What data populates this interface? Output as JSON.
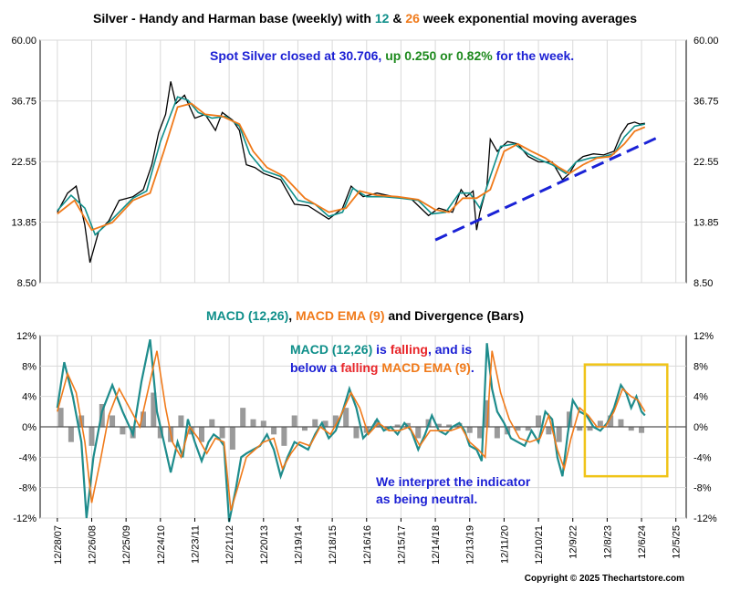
{
  "colors": {
    "price": "#000000",
    "ema12": "#0f8f8a",
    "ema26": "#f07a1a",
    "macd": "#1e8c8c",
    "signal": "#f07a1a",
    "bars": "#9a9a9a",
    "trendline": "#1a22d6",
    "highlight": "#f0c419",
    "grid": "#d9d9d9"
  },
  "header": {
    "title_pre": "Silver - Handy and Harman base (weekly) with ",
    "title_12": "12",
    "title_amp": " & ",
    "title_26": "26",
    "title_post": " week exponential moving averages"
  },
  "spot_note": {
    "pre": "Spot Silver closed at 30.706, ",
    "up": "up 0.250 or 0.82%",
    "post": " for the week."
  },
  "macd_header": {
    "macd": "MACD (12,26)",
    "sep": ", ",
    "ema": "MACD EMA (9)",
    "post": " and Divergence (Bars)"
  },
  "macd_note": {
    "l1_macd": "MACD (12,26)",
    "l1_is": " is ",
    "l1_falling": "falling",
    "l1_rest": ", and is",
    "l2_below": "below a ",
    "l2_falling": "falling",
    "l2_ema": " MACD EMA (9)",
    "l2_dot": "."
  },
  "interpret_note": {
    "line1": "We interpret the indicator",
    "line2": "as being neutral."
  },
  "copyright": "Copyright © 2025 Thechartstore.com",
  "chart_data": [
    {
      "type": "line",
      "title": "Silver - Handy and Harman base (weekly) with 12 & 26 week exponential moving averages",
      "log_scale": true,
      "ylim": [
        8.5,
        60
      ],
      "y_ticks": [
        "60.00",
        "36.75",
        "22.55",
        "13.85",
        "8.50"
      ],
      "grid": true,
      "x_range": [
        2007.5,
        2026.3
      ],
      "series": [
        {
          "name": "Silver",
          "x": [
            2008.0,
            2008.3,
            2008.55,
            2008.8,
            2008.95,
            2009.2,
            2009.5,
            2009.8,
            2010.2,
            2010.5,
            2010.75,
            2010.95,
            2011.15,
            2011.3,
            2011.45,
            2011.7,
            2012.0,
            2012.3,
            2012.6,
            2012.8,
            2013.1,
            2013.3,
            2013.5,
            2013.75,
            2014.0,
            2014.5,
            2014.9,
            2015.3,
            2015.9,
            2016.3,
            2016.55,
            2016.9,
            2017.3,
            2017.8,
            2018.3,
            2018.8,
            2019.1,
            2019.5,
            2019.75,
            2019.9,
            2020.1,
            2020.2,
            2020.3,
            2020.5,
            2020.6,
            2020.8,
            2021.1,
            2021.4,
            2021.7,
            2022.0,
            2022.4,
            2022.7,
            2022.9,
            2023.1,
            2023.3,
            2023.6,
            2023.9,
            2024.2,
            2024.4,
            2024.6,
            2024.8,
            2024.95,
            2025.1
          ],
          "values": [
            15.0,
            17.5,
            18.5,
            13.5,
            10.0,
            12.8,
            14.0,
            16.5,
            17.0,
            18.0,
            22.0,
            28.5,
            33.0,
            43.0,
            36.0,
            38.5,
            32.0,
            33.0,
            29.0,
            33.5,
            31.5,
            29.0,
            22.0,
            21.5,
            20.5,
            19.5,
            16.0,
            15.8,
            14.2,
            15.5,
            18.5,
            17.0,
            17.5,
            17.0,
            16.7,
            14.6,
            15.5,
            15.0,
            18.0,
            17.0,
            17.8,
            13.0,
            15.0,
            18.5,
            27.0,
            24.5,
            26.5,
            26.0,
            23.5,
            22.5,
            22.5,
            19.5,
            20.5,
            22.5,
            23.5,
            24.0,
            23.8,
            24.5,
            28.0,
            30.5,
            31.0,
            30.5,
            30.7
          ]
        },
        {
          "name": "12 week EMA",
          "x": [
            2008.0,
            2008.4,
            2008.8,
            2009.1,
            2009.6,
            2010.2,
            2010.6,
            2011.0,
            2011.3,
            2011.5,
            2011.8,
            2012.1,
            2012.5,
            2012.9,
            2013.3,
            2013.6,
            2014.0,
            2014.5,
            2015.0,
            2015.5,
            2015.9,
            2016.3,
            2016.6,
            2017.0,
            2017.5,
            2018.0,
            2018.5,
            2018.9,
            2019.3,
            2019.7,
            2020.0,
            2020.3,
            2020.6,
            2020.9,
            2021.3,
            2021.7,
            2022.0,
            2022.4,
            2022.8,
            2023.1,
            2023.5,
            2023.9,
            2024.2,
            2024.5,
            2024.8,
            2025.1
          ],
          "values": [
            15.2,
            17.2,
            15.5,
            12.5,
            14.2,
            16.8,
            17.8,
            26.5,
            33.0,
            38.0,
            37.0,
            33.5,
            32.0,
            32.5,
            30.0,
            24.0,
            21.0,
            20.0,
            16.5,
            16.0,
            14.5,
            15.0,
            18.2,
            17.0,
            17.0,
            16.8,
            16.5,
            14.8,
            15.0,
            17.5,
            17.5,
            15.5,
            20.0,
            25.5,
            26.0,
            24.0,
            23.0,
            22.0,
            20.5,
            22.5,
            23.2,
            23.5,
            24.0,
            27.5,
            30.0,
            30.5
          ]
        },
        {
          "name": "26 week EMA",
          "x": [
            2008.0,
            2008.5,
            2009.0,
            2009.6,
            2010.2,
            2010.7,
            2011.1,
            2011.5,
            2011.9,
            2012.3,
            2012.8,
            2013.3,
            2013.7,
            2014.1,
            2014.6,
            2015.2,
            2015.9,
            2016.4,
            2016.8,
            2017.3,
            2017.9,
            2018.5,
            2019.0,
            2019.4,
            2019.8,
            2020.2,
            2020.6,
            2021.0,
            2021.4,
            2021.8,
            2022.2,
            2022.6,
            2022.9,
            2023.3,
            2023.7,
            2024.1,
            2024.5,
            2024.8,
            2025.1
          ],
          "values": [
            14.8,
            16.5,
            13.0,
            13.8,
            16.5,
            17.5,
            24.5,
            35.0,
            36.0,
            33.0,
            32.5,
            30.5,
            24.5,
            21.5,
            20.0,
            16.8,
            15.0,
            15.5,
            17.8,
            17.2,
            17.0,
            16.6,
            15.3,
            15.0,
            16.8,
            16.8,
            18.0,
            24.5,
            26.0,
            24.5,
            23.2,
            21.5,
            20.5,
            22.0,
            23.2,
            23.5,
            26.0,
            28.8,
            29.8
          ]
        },
        {
          "name": "Trendline",
          "x": [
            2019.0,
            2025.5
          ],
          "values": [
            12.0,
            27.5
          ]
        }
      ]
    },
    {
      "type": "line",
      "title": "MACD (12,26), MACD EMA (9) and Divergence (Bars)",
      "ylim": [
        -12,
        12
      ],
      "y_ticks": [
        "12%",
        "8%",
        "4%",
        "0%",
        "-4%",
        "-8%",
        "-12%"
      ],
      "grid": true,
      "x_ticks": [
        "12/28/07",
        "12/26/08",
        "12/25/09",
        "12/24/10",
        "12/23/11",
        "12/21/12",
        "12/20/13",
        "12/19/14",
        "12/18/15",
        "12/16/16",
        "12/15/17",
        "12/14/18",
        "12/13/19",
        "12/11/20",
        "12/10/21",
        "12/9/22",
        "12/8/23",
        "12/6/24",
        "12/5/25"
      ],
      "x_range": [
        2007.5,
        2026.3
      ],
      "series": [
        {
          "name": "MACD (12,26)",
          "x": [
            2008.0,
            2008.2,
            2008.45,
            2008.7,
            2008.85,
            2009.05,
            2009.3,
            2009.6,
            2009.9,
            2010.2,
            2010.45,
            2010.7,
            2010.9,
            2011.15,
            2011.3,
            2011.5,
            2011.65,
            2011.8,
            2012.0,
            2012.2,
            2012.4,
            2012.55,
            2012.7,
            2012.85,
            2013.0,
            2013.2,
            2013.35,
            2013.5,
            2013.7,
            2013.9,
            2014.1,
            2014.3,
            2014.5,
            2014.7,
            2014.9,
            2015.1,
            2015.3,
            2015.5,
            2015.7,
            2015.9,
            2016.1,
            2016.3,
            2016.5,
            2016.7,
            2016.9,
            2017.1,
            2017.3,
            2017.5,
            2017.7,
            2017.9,
            2018.1,
            2018.3,
            2018.5,
            2018.7,
            2018.9,
            2019.1,
            2019.3,
            2019.5,
            2019.7,
            2019.85,
            2020.0,
            2020.2,
            2020.35,
            2020.5,
            2020.65,
            2020.8,
            2021.0,
            2021.2,
            2021.4,
            2021.6,
            2021.8,
            2022.0,
            2022.2,
            2022.4,
            2022.55,
            2022.7,
            2022.85,
            2023.0,
            2023.2,
            2023.4,
            2023.6,
            2023.8,
            2024.0,
            2024.2,
            2024.4,
            2024.55,
            2024.7,
            2024.85,
            2025.0,
            2025.1
          ],
          "values": [
            2.5,
            8.5,
            4.0,
            -2.0,
            -12.0,
            -4.0,
            2.0,
            5.5,
            2.0,
            -1.0,
            6.0,
            11.5,
            2.0,
            -3.0,
            -6.0,
            -2.0,
            -4.0,
            1.0,
            -2.0,
            -4.5,
            -2.0,
            -1.0,
            -1.5,
            -2.5,
            -12.5,
            -8.0,
            -4.0,
            -3.5,
            -3.0,
            -2.5,
            -1.0,
            -3.0,
            -6.5,
            -4.0,
            -2.0,
            -2.5,
            -3.0,
            -1.0,
            0.5,
            -1.5,
            -0.5,
            2.0,
            5.0,
            2.5,
            -1.5,
            -0.5,
            1.0,
            -0.5,
            0.0,
            -1.0,
            0.5,
            -0.5,
            -3.0,
            -1.0,
            1.5,
            -0.5,
            -1.0,
            0.0,
            0.5,
            -0.5,
            -2.5,
            -3.0,
            -4.5,
            11.0,
            5.0,
            2.0,
            0.5,
            -1.5,
            -2.0,
            -2.5,
            -0.5,
            -2.0,
            2.0,
            1.0,
            -4.0,
            -6.5,
            -1.0,
            3.5,
            2.0,
            1.5,
            0.0,
            -0.5,
            0.5,
            2.5,
            5.5,
            4.5,
            2.5,
            4.0,
            2.0,
            1.5
          ]
        },
        {
          "name": "MACD EMA (9)",
          "x": [
            2008.0,
            2008.3,
            2008.55,
            2008.8,
            2009.0,
            2009.25,
            2009.5,
            2009.8,
            2010.1,
            2010.4,
            2010.65,
            2010.9,
            2011.15,
            2011.35,
            2011.6,
            2011.85,
            2012.1,
            2012.35,
            2012.6,
            2012.85,
            2013.05,
            2013.25,
            2013.5,
            2013.75,
            2014.0,
            2014.3,
            2014.55,
            2014.8,
            2015.05,
            2015.35,
            2015.65,
            2015.95,
            2016.25,
            2016.55,
            2016.8,
            2017.05,
            2017.35,
            2017.65,
            2017.95,
            2018.25,
            2018.55,
            2018.85,
            2019.15,
            2019.45,
            2019.75,
            2020.0,
            2020.25,
            2020.45,
            2020.65,
            2020.9,
            2021.15,
            2021.45,
            2021.75,
            2022.05,
            2022.3,
            2022.55,
            2022.75,
            2022.95,
            2023.2,
            2023.45,
            2023.7,
            2023.95,
            2024.2,
            2024.45,
            2024.7,
            2024.9,
            2025.1
          ],
          "values": [
            2.0,
            7.0,
            4.5,
            -2.0,
            -10.0,
            -4.5,
            1.5,
            5.0,
            2.5,
            0.0,
            5.0,
            10.0,
            2.5,
            -2.0,
            -4.0,
            0.0,
            -1.5,
            -3.5,
            -1.5,
            -2.0,
            -11.0,
            -8.0,
            -4.0,
            -3.0,
            -2.0,
            -1.5,
            -5.5,
            -3.5,
            -2.0,
            -2.5,
            0.0,
            -1.0,
            1.5,
            4.5,
            2.5,
            -1.0,
            0.5,
            -0.5,
            -0.5,
            0.0,
            -2.5,
            -0.5,
            -0.5,
            -0.5,
            0.0,
            -2.0,
            -3.0,
            -4.0,
            10.0,
            4.5,
            1.0,
            -1.5,
            -2.0,
            -1.5,
            1.5,
            -3.0,
            -5.5,
            -1.5,
            2.5,
            1.5,
            0.0,
            0.0,
            2.0,
            5.0,
            4.0,
            3.5,
            2.0
          ]
        },
        {
          "name": "Divergence (Bars)",
          "x": [
            2008.1,
            2008.4,
            2008.7,
            2009.0,
            2009.3,
            2009.6,
            2009.9,
            2010.2,
            2010.5,
            2010.8,
            2011.0,
            2011.3,
            2011.6,
            2011.9,
            2012.2,
            2012.5,
            2012.8,
            2013.1,
            2013.4,
            2013.7,
            2014.0,
            2014.3,
            2014.6,
            2014.9,
            2015.2,
            2015.5,
            2015.8,
            2016.1,
            2016.4,
            2016.7,
            2017.0,
            2017.3,
            2017.6,
            2017.9,
            2018.2,
            2018.5,
            2018.8,
            2019.1,
            2019.4,
            2019.7,
            2020.0,
            2020.3,
            2020.5,
            2020.8,
            2021.1,
            2021.4,
            2021.7,
            2022.0,
            2022.3,
            2022.6,
            2022.9,
            2023.2,
            2023.5,
            2023.8,
            2024.1,
            2024.4,
            2024.7,
            2025.0
          ],
          "values": [
            2.5,
            -2.0,
            1.5,
            -2.5,
            3.0,
            1.5,
            -1.0,
            -1.5,
            2.0,
            4.5,
            -1.5,
            -2.0,
            1.5,
            -1.0,
            -2.0,
            1.0,
            -1.5,
            -3.0,
            2.5,
            1.0,
            0.8,
            -1.0,
            -2.5,
            1.5,
            -0.5,
            1.0,
            0.8,
            1.5,
            2.5,
            -1.5,
            -0.8,
            0.8,
            -0.5,
            0.3,
            0.5,
            -1.5,
            1.0,
            0.4,
            0.3,
            0.5,
            -0.8,
            -1.5,
            3.5,
            -1.5,
            -1.0,
            -0.5,
            -0.5,
            1.5,
            -1.0,
            -2.0,
            2.0,
            -0.5,
            -0.5,
            0.8,
            1.5,
            1.0,
            -0.5,
            -0.8
          ]
        }
      ]
    }
  ]
}
